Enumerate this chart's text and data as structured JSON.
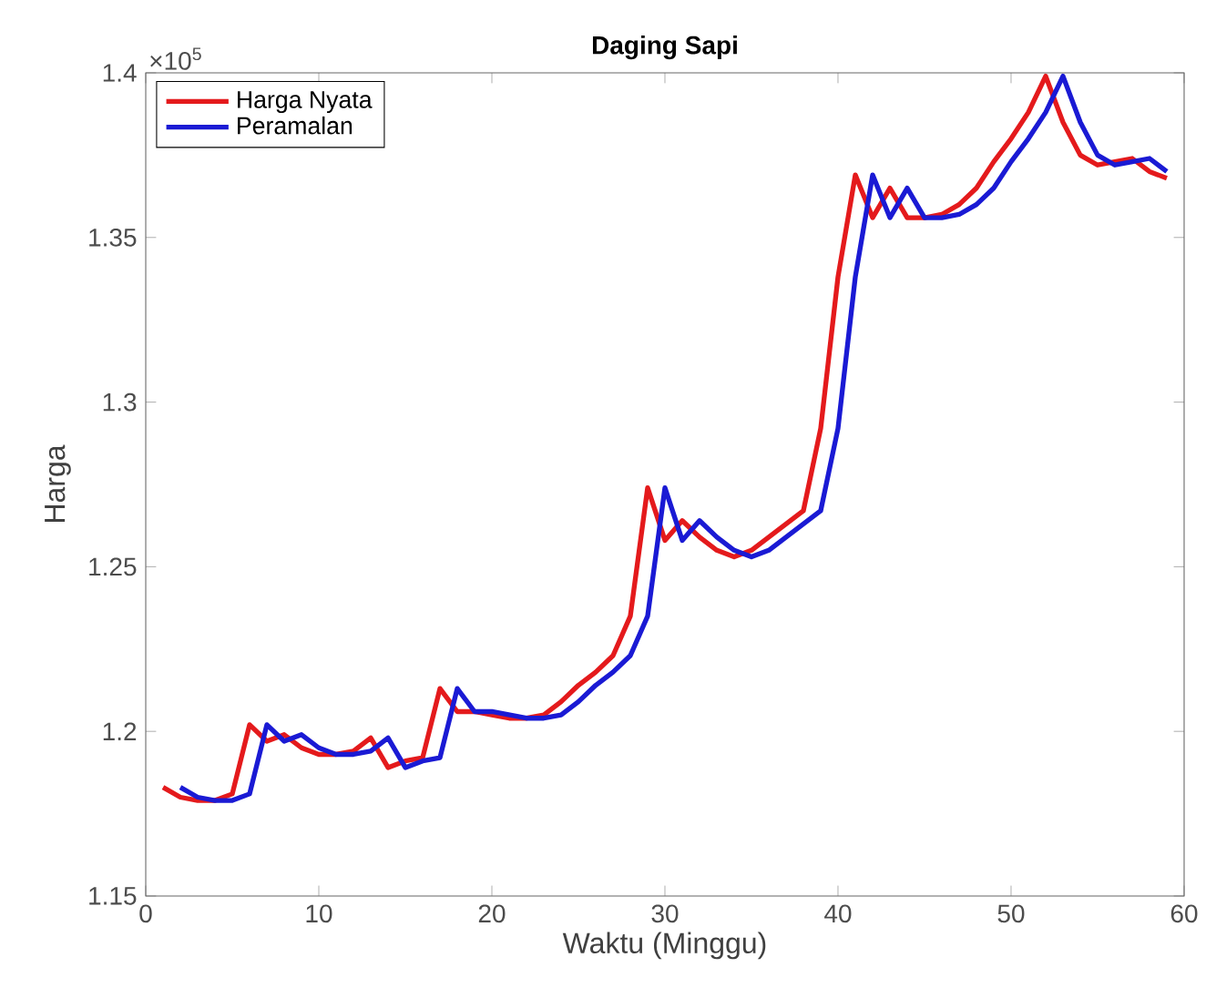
{
  "chart_data": {
    "type": "line",
    "title": "Daging Sapi",
    "xlabel": "Waktu (Minggu)",
    "ylabel": "Harga",
    "annotations": [
      "×10$^{5}$"
    ],
    "series": [
      {
        "name": "Harga Nyata",
        "color": "#e41a1c",
        "x": [
          1,
          2,
          3,
          4,
          5,
          6,
          7,
          8,
          9,
          10,
          11,
          12,
          13,
          14,
          15,
          16,
          17,
          18,
          19,
          20,
          21,
          22,
          23,
          24,
          25,
          26,
          27,
          28,
          29,
          30,
          31,
          32,
          33,
          34,
          35,
          36,
          37,
          38,
          39,
          40,
          41,
          42,
          43,
          44,
          45,
          46,
          47,
          48,
          49,
          50,
          51,
          52,
          53,
          54,
          55,
          56,
          57,
          58,
          59
        ],
        "values": [
          1.183,
          1.18,
          1.179,
          1.179,
          1.181,
          1.202,
          1.197,
          1.199,
          1.195,
          1.193,
          1.193,
          1.194,
          1.198,
          1.189,
          1.191,
          1.192,
          1.213,
          1.206,
          1.206,
          1.205,
          1.204,
          1.204,
          1.205,
          1.209,
          1.214,
          1.218,
          1.223,
          1.235,
          1.274,
          1.258,
          1.264,
          1.259,
          1.255,
          1.253,
          1.255,
          1.259,
          1.263,
          1.267,
          1.292,
          1.338,
          1.369,
          1.356,
          1.365,
          1.356,
          1.356,
          1.357,
          1.36,
          1.365,
          1.373,
          1.38,
          1.388,
          1.399,
          1.385,
          1.375,
          1.372,
          1.373,
          1.374,
          1.37,
          1.368
        ]
      },
      {
        "name": "Peramalan",
        "color": "#1a1ad4",
        "x": [
          2,
          3,
          4,
          5,
          6,
          7,
          8,
          9,
          10,
          11,
          12,
          13,
          14,
          15,
          16,
          17,
          18,
          19,
          20,
          21,
          22,
          23,
          24,
          25,
          26,
          27,
          28,
          29,
          30,
          31,
          32,
          33,
          34,
          35,
          36,
          37,
          38,
          39,
          40,
          41,
          42,
          43,
          44,
          45,
          46,
          47,
          48,
          49,
          50,
          51,
          52,
          53,
          54,
          55,
          56,
          57,
          58,
          59
        ],
        "values": [
          1.183,
          1.18,
          1.179,
          1.179,
          1.181,
          1.202,
          1.197,
          1.199,
          1.195,
          1.193,
          1.193,
          1.194,
          1.198,
          1.189,
          1.191,
          1.192,
          1.213,
          1.206,
          1.206,
          1.205,
          1.204,
          1.204,
          1.205,
          1.209,
          1.214,
          1.218,
          1.223,
          1.235,
          1.274,
          1.258,
          1.264,
          1.259,
          1.255,
          1.253,
          1.255,
          1.259,
          1.263,
          1.267,
          1.292,
          1.338,
          1.369,
          1.356,
          1.365,
          1.356,
          1.356,
          1.357,
          1.36,
          1.365,
          1.373,
          1.38,
          1.388,
          1.399,
          1.385,
          1.375,
          1.372,
          1.373,
          1.374,
          1.37
        ]
      }
    ],
    "xlim": [
      0,
      60
    ],
    "xticks": [
      0,
      10,
      20,
      30,
      40,
      50,
      60
    ],
    "ylim": [
      1.15,
      1.4
    ],
    "yticks": [
      1.15,
      1.2,
      1.25,
      1.3,
      1.35,
      1.4
    ],
    "legend": "top left",
    "grid": false,
    "marker": "none",
    "line_style": "solid"
  }
}
